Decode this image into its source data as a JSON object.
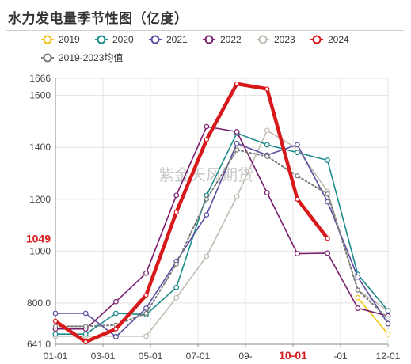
{
  "chart_data": {
    "type": "line",
    "title": "水力发电量季节性图（亿度）",
    "watermark": "紫金天风期货",
    "x_ticks": [
      "01-01",
      "03-01",
      "05-01",
      "07-01",
      "09-",
      "10-01",
      "-01",
      "12-01"
    ],
    "x_highlight": "10-01",
    "y_ticks": [
      "641.0",
      "800.0",
      "1000",
      "1200",
      "1400",
      "1600",
      "1666"
    ],
    "y_highlight": "1049",
    "ylim": [
      641,
      1666
    ],
    "legend_position": "top-left",
    "months": [
      "01",
      "02",
      "03",
      "04",
      "05",
      "06",
      "07",
      "08",
      "09",
      "10",
      "11",
      "12"
    ],
    "series": [
      {
        "name": "2019",
        "color": "#f2c311",
        "values": [
          null,
          null,
          null,
          null,
          null,
          null,
          null,
          null,
          null,
          null,
          820,
          680
        ]
      },
      {
        "name": "2020",
        "color": "#1a8a8a",
        "values": [
          680,
          680,
          760,
          755,
          860,
          1215,
          1455,
          1410,
          1380,
          1350,
          910,
          770
        ]
      },
      {
        "name": "2021",
        "color": "#5b4ea0",
        "values": [
          760,
          760,
          670,
          780,
          960,
          1140,
          1415,
          1370,
          1410,
          1190,
          900,
          720
        ]
      },
      {
        "name": "2022",
        "color": "#7a1d6e",
        "values": [
          700,
          700,
          805,
          915,
          1215,
          1480,
          1460,
          1225,
          990,
          992,
          780,
          750
        ]
      },
      {
        "name": "2023",
        "color": "#c2bbb0",
        "values": [
          672,
          672,
          672,
          672,
          820,
          980,
          1210,
          1465,
          1395,
          1230,
          850,
          770
        ]
      },
      {
        "name": "2024",
        "color": "#d7191c",
        "values": [
          730,
          650,
          700,
          830,
          1150,
          1430,
          1645,
          1625,
          1200,
          1049,
          null,
          null
        ]
      },
      {
        "name": "2019-2023均值",
        "color": "#7a7a7a",
        "values": [
          710,
          710,
          715,
          760,
          950,
          1200,
          1390,
          1365,
          1290,
          1220,
          850,
          740
        ]
      }
    ]
  }
}
